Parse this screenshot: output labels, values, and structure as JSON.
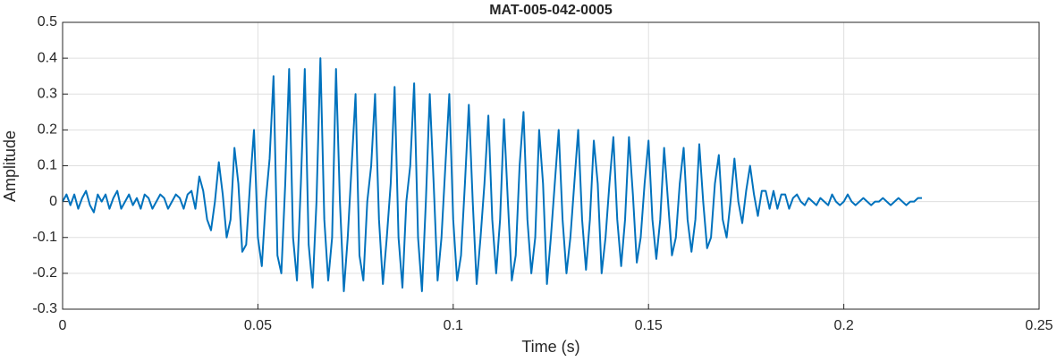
{
  "chart_data": {
    "type": "line",
    "title": "MAT-005-042-0005",
    "xlabel": "Time (s)",
    "ylabel": "Amplitude",
    "xlim": [
      0,
      0.25
    ],
    "ylim": [
      -0.3,
      0.5
    ],
    "xticks": [
      0,
      0.05,
      0.1,
      0.15,
      0.2,
      0.25
    ],
    "yticks": [
      -0.3,
      -0.2,
      -0.1,
      0,
      0.1,
      0.2,
      0.3,
      0.4,
      0.5
    ],
    "grid": true,
    "color": "#0072bd",
    "x": [
      0,
      0.001,
      0.002,
      0.003,
      0.004,
      0.005,
      0.006,
      0.007,
      0.008,
      0.009,
      0.01,
      0.011,
      0.012,
      0.013,
      0.014,
      0.015,
      0.016,
      0.017,
      0.018,
      0.019,
      0.02,
      0.021,
      0.022,
      0.023,
      0.024,
      0.025,
      0.026,
      0.027,
      0.028,
      0.029,
      0.03,
      0.031,
      0.032,
      0.033,
      0.034,
      0.035,
      0.036,
      0.037,
      0.038,
      0.039,
      0.04,
      0.041,
      0.042,
      0.043,
      0.044,
      0.045,
      0.046,
      0.047,
      0.048,
      0.049,
      0.05,
      0.051,
      0.052,
      0.053,
      0.054,
      0.055,
      0.056,
      0.057,
      0.058,
      0.059,
      0.06,
      0.061,
      0.062,
      0.063,
      0.064,
      0.065,
      0.066,
      0.067,
      0.068,
      0.069,
      0.07,
      0.071,
      0.072,
      0.073,
      0.074,
      0.075,
      0.076,
      0.077,
      0.078,
      0.079,
      0.08,
      0.081,
      0.082,
      0.083,
      0.084,
      0.085,
      0.086,
      0.087,
      0.088,
      0.089,
      0.09,
      0.091,
      0.092,
      0.093,
      0.094,
      0.095,
      0.096,
      0.097,
      0.098,
      0.099,
      0.1,
      0.101,
      0.102,
      0.103,
      0.104,
      0.105,
      0.106,
      0.107,
      0.108,
      0.109,
      0.11,
      0.111,
      0.112,
      0.113,
      0.114,
      0.115,
      0.116,
      0.117,
      0.118,
      0.119,
      0.12,
      0.121,
      0.122,
      0.123,
      0.124,
      0.125,
      0.126,
      0.127,
      0.128,
      0.129,
      0.13,
      0.131,
      0.132,
      0.133,
      0.134,
      0.135,
      0.136,
      0.137,
      0.138,
      0.139,
      0.14,
      0.141,
      0.142,
      0.143,
      0.144,
      0.145,
      0.146,
      0.147,
      0.148,
      0.149,
      0.15,
      0.151,
      0.152,
      0.153,
      0.154,
      0.155,
      0.156,
      0.157,
      0.158,
      0.159,
      0.16,
      0.161,
      0.162,
      0.163,
      0.164,
      0.165,
      0.166,
      0.167,
      0.168,
      0.169,
      0.17,
      0.171,
      0.172,
      0.173,
      0.174,
      0.175,
      0.176,
      0.177,
      0.178,
      0.179,
      0.18,
      0.181,
      0.182,
      0.183,
      0.184,
      0.185,
      0.186,
      0.187,
      0.188,
      0.189,
      0.19,
      0.191,
      0.192,
      0.193,
      0.194,
      0.195,
      0.196,
      0.197,
      0.198,
      0.199,
      0.2,
      0.201,
      0.202,
      0.203,
      0.204,
      0.205,
      0.206,
      0.207,
      0.208,
      0.209,
      0.21,
      0.211,
      0.212,
      0.213,
      0.214,
      0.215,
      0.216,
      0.217,
      0.218,
      0.219,
      0.22
    ],
    "values": [
      0,
      0.02,
      -0.01,
      0.02,
      -0.02,
      0.01,
      0.03,
      -0.01,
      -0.03,
      0.02,
      0.0,
      0.02,
      -0.02,
      0.01,
      0.03,
      -0.02,
      0.0,
      0.02,
      -0.01,
      0.01,
      -0.02,
      0.02,
      0.01,
      -0.02,
      0.0,
      0.02,
      0.01,
      -0.02,
      0.0,
      0.02,
      0.01,
      -0.02,
      0.02,
      0.03,
      -0.02,
      0.07,
      0.03,
      -0.05,
      -0.08,
      0.0,
      0.11,
      0.02,
      -0.1,
      -0.05,
      0.15,
      0.05,
      -0.14,
      -0.12,
      0.05,
      0.2,
      -0.1,
      -0.18,
      0.0,
      0.12,
      0.35,
      -0.15,
      -0.2,
      0.05,
      0.37,
      -0.1,
      -0.22,
      0.05,
      0.37,
      -0.12,
      -0.24,
      0.0,
      0.4,
      -0.05,
      -0.22,
      -0.1,
      0.37,
      0.0,
      -0.25,
      -0.1,
      0.1,
      0.3,
      -0.15,
      -0.22,
      0.0,
      0.1,
      0.3,
      -0.05,
      -0.23,
      -0.1,
      0.05,
      0.32,
      -0.1,
      -0.24,
      0.0,
      0.1,
      0.33,
      -0.1,
      -0.25,
      0.0,
      0.3,
      0.05,
      -0.22,
      -0.1,
      0.1,
      0.3,
      -0.05,
      -0.22,
      -0.15,
      0.05,
      0.27,
      0.0,
      -0.23,
      -0.1,
      0.05,
      0.24,
      -0.05,
      -0.2,
      -0.05,
      0.23,
      0.0,
      -0.22,
      -0.15,
      0.1,
      0.25,
      -0.05,
      -0.2,
      -0.1,
      0.2,
      0.05,
      -0.23,
      -0.1,
      0.05,
      0.2,
      -0.05,
      -0.2,
      -0.1,
      0.05,
      0.2,
      -0.05,
      -0.19,
      -0.05,
      0.17,
      0.05,
      -0.2,
      -0.1,
      0.05,
      0.18,
      -0.05,
      -0.18,
      -0.05,
      0.18,
      0.02,
      -0.17,
      -0.1,
      0.05,
      0.17,
      -0.05,
      -0.16,
      -0.05,
      0.15,
      0.0,
      -0.15,
      -0.1,
      0.05,
      0.15,
      -0.05,
      -0.14,
      -0.05,
      0.16,
      0.0,
      -0.13,
      -0.1,
      0.05,
      0.13,
      -0.05,
      -0.1,
      0.0,
      0.12,
      0.0,
      -0.06,
      0.03,
      0.1,
      0.02,
      -0.04,
      0.03,
      0.03,
      -0.02,
      0.03,
      -0.02,
      0.02,
      0.02,
      -0.02,
      0.01,
      0.02,
      0.0,
      -0.01,
      0.01,
      0.0,
      -0.01,
      0.01,
      0.0,
      -0.01,
      0.02,
      0.0,
      -0.01,
      0.0,
      0.02,
      0.0,
      -0.01,
      0.0,
      0.01,
      0.0,
      -0.01,
      0.0,
      0.0,
      0.01,
      0.0,
      -0.01,
      0.0,
      0.01,
      0.0,
      -0.01,
      0.0,
      0.0,
      0.01,
      0.01
    ]
  }
}
